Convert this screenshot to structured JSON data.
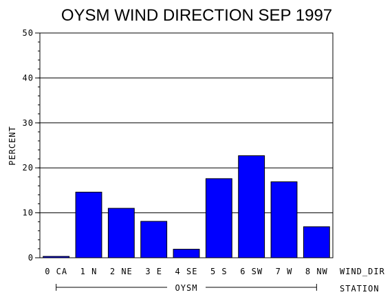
{
  "colors": {
    "bar": "#0000ff",
    "grid": "#000000",
    "background": "#ffffff"
  },
  "chart_data": {
    "type": "bar",
    "title": "OYSM WIND DIRECTION SEP 1997",
    "ylabel": "PERCENT",
    "xlabel": "WIND_DIR",
    "group_axis_label": "STATION",
    "group_label": "OYSM",
    "categories": [
      "0 CA",
      "1 N",
      "2 NE",
      "3 E",
      "4 SE",
      "5 S",
      "6 SW",
      "7 W",
      "8 NW"
    ],
    "values": [
      0.3,
      14.6,
      11.0,
      8.1,
      1.9,
      17.6,
      22.7,
      16.9,
      6.9
    ],
    "ylim": [
      0,
      50
    ],
    "yticks": [
      "0",
      "10",
      "20",
      "30",
      "40",
      "50"
    ],
    "grid": true,
    "legend": "none"
  }
}
